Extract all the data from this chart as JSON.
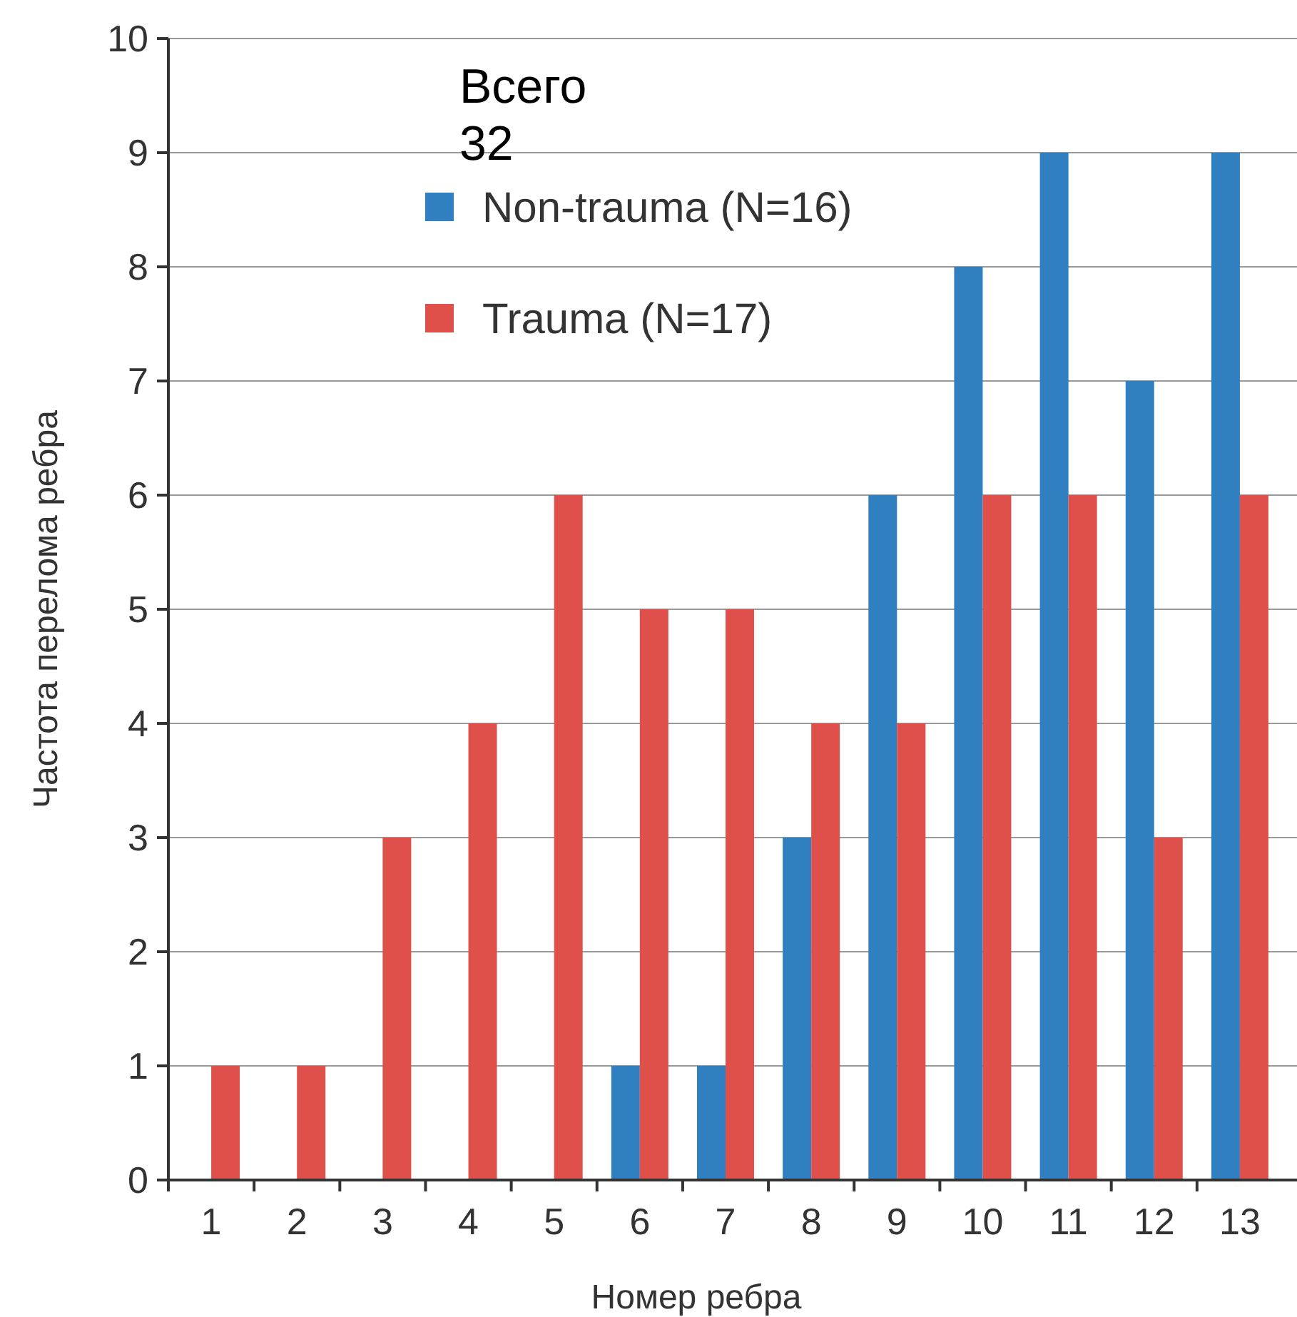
{
  "chart_data": {
    "type": "bar",
    "xlabel": "Номер ребра",
    "ylabel": "Частота перелома ребра",
    "categories": [
      "1",
      "2",
      "3",
      "4",
      "5",
      "6",
      "7",
      "8",
      "9",
      "10",
      "11",
      "12",
      "13"
    ],
    "series": [
      {
        "name": "Non-trauma (N=16)",
        "color": "#2f7fc1",
        "values": [
          0,
          0,
          0,
          0,
          0,
          1,
          1,
          3,
          6,
          8,
          9,
          7,
          9
        ]
      },
      {
        "name": "Trauma (N=17)",
        "color": "#e0504a",
        "values": [
          1,
          1,
          3,
          4,
          6,
          5,
          5,
          4,
          4,
          6,
          6,
          3,
          6
        ]
      }
    ],
    "ylim": [
      0,
      10
    ],
    "yticks": [
      0,
      1,
      2,
      3,
      4,
      5,
      6,
      7,
      8,
      9,
      10
    ],
    "grid": "y",
    "legend": "top",
    "annotations": [
      "Всего 32"
    ]
  }
}
